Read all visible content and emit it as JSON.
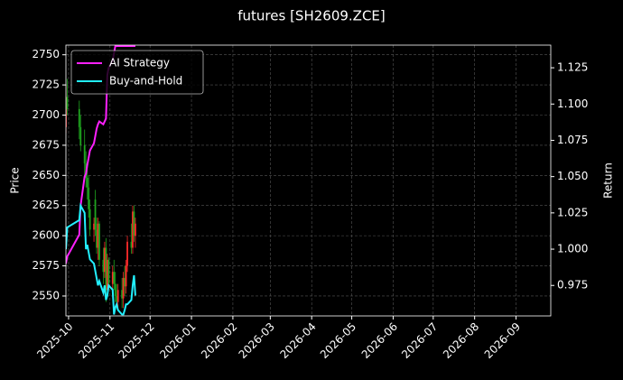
{
  "chart_data": {
    "type": "candlestick",
    "title": "futures [SH2609.ZCE]",
    "ylabel": "Price",
    "y2label": "Return",
    "x": [
      "2025-09-29",
      "2025-09-30",
      "2025-10-09",
      "2025-10-10",
      "2025-10-13",
      "2025-10-14",
      "2025-10-15",
      "2025-10-16",
      "2025-10-17",
      "2025-10-20",
      "2025-10-21",
      "2025-10-22",
      "2025-10-23",
      "2025-10-24",
      "2025-10-27",
      "2025-10-28",
      "2025-10-29",
      "2025-10-30",
      "2025-10-31",
      "2025-11-03",
      "2025-11-04",
      "2025-11-05",
      "2025-11-06",
      "2025-11-07",
      "2025-11-10",
      "2025-11-11",
      "2025-11-12",
      "2025-11-13",
      "2025-11-14",
      "2025-11-17",
      "2025-11-18",
      "2025-11-19",
      "2025-11-20"
    ],
    "open": [
      2690,
      2715,
      2705,
      2690,
      2675,
      2660,
      2648,
      2640,
      2622,
      2605,
      2630,
      2605,
      2590,
      2610,
      2580,
      2570,
      2590,
      2555,
      2580,
      2560,
      2570,
      2560,
      2550,
      2545,
      2555,
      2548,
      2565,
      2558,
      2575,
      2595,
      2590,
      2620,
      2600
    ],
    "high": [
      2725,
      2730,
      2712,
      2700,
      2688,
      2670,
      2660,
      2650,
      2630,
      2615,
      2638,
      2615,
      2615,
      2612,
      2590,
      2595,
      2598,
      2585,
      2582,
      2575,
      2580,
      2570,
      2560,
      2560,
      2565,
      2570,
      2575,
      2580,
      2600,
      2610,
      2625,
      2625,
      2615
    ],
    "low": [
      2685,
      2700,
      2680,
      2670,
      2650,
      2640,
      2630,
      2615,
      2600,
      2595,
      2600,
      2585,
      2580,
      2575,
      2560,
      2565,
      2545,
      2550,
      2555,
      2548,
      2555,
      2545,
      2540,
      2538,
      2540,
      2540,
      2550,
      2552,
      2570,
      2585,
      2585,
      2595,
      2590
    ],
    "close": [
      2715,
      2705,
      2690,
      2675,
      2660,
      2648,
      2640,
      2622,
      2605,
      2610,
      2605,
      2590,
      2610,
      2580,
      2570,
      2590,
      2555,
      2580,
      2560,
      2570,
      2560,
      2550,
      2545,
      2555,
      2548,
      2565,
      2558,
      2575,
      2595,
      2590,
      2620,
      2600,
      2610
    ],
    "up_color": "#ff2a2a",
    "down_color": "#1fa51f",
    "series": [
      {
        "name": "AI Strategy",
        "color": "#ff20ff",
        "axis": "y2",
        "values": [
          0.99,
          0.995,
          1.01,
          1.03,
          1.05,
          1.052,
          1.058,
          1.063,
          1.068,
          1.073,
          1.078,
          1.083,
          1.086,
          1.088,
          1.086,
          1.088,
          1.09,
          1.12,
          1.125,
          1.13,
          1.135,
          1.14,
          1.14,
          1.14,
          1.14,
          1.14,
          1.14,
          1.14,
          1.14,
          1.14,
          1.14,
          1.14,
          1.14
        ]
      },
      {
        "name": "Buy-and-Hold",
        "color": "#22f0ff",
        "axis": "y2",
        "values": [
          1.0,
          1.015,
          1.02,
          1.03,
          1.025,
          1.0,
          1.003,
          0.998,
          0.993,
          0.99,
          0.985,
          0.98,
          0.975,
          0.978,
          0.97,
          0.975,
          0.965,
          0.968,
          0.975,
          0.972,
          0.955,
          0.96,
          0.962,
          0.958,
          0.955,
          0.955,
          0.958,
          0.962,
          0.962,
          0.965,
          0.975,
          0.982,
          0.968
        ]
      }
    ],
    "xlim": [
      "2025-09-29",
      "2026-09-27"
    ],
    "xticks": [
      {
        "value": "2025-10-01",
        "label": "2025-10"
      },
      {
        "value": "2025-11-01",
        "label": "2025-11"
      },
      {
        "value": "2025-12-01",
        "label": "2025-12"
      },
      {
        "value": "2026-01-01",
        "label": "2026-01"
      },
      {
        "value": "2026-02-01",
        "label": "2026-02"
      },
      {
        "value": "2026-03-01",
        "label": "2026-03"
      },
      {
        "value": "2026-04-01",
        "label": "2026-04"
      },
      {
        "value": "2026-05-01",
        "label": "2026-05"
      },
      {
        "value": "2026-06-01",
        "label": "2026-06"
      },
      {
        "value": "2026-07-01",
        "label": "2026-07"
      },
      {
        "value": "2026-08-01",
        "label": "2026-08"
      },
      {
        "value": "2026-09-01",
        "label": "2026-09"
      }
    ],
    "ylim": [
      2533.5,
      2758
    ],
    "yticks": [
      2550,
      2575,
      2600,
      2625,
      2650,
      2675,
      2700,
      2725,
      2750
    ],
    "y2lim": [
      0.954,
      1.1406
    ],
    "y2ticks": [
      0.975,
      {
        "value": 1.0,
        "label": "1.000"
      },
      1.025,
      {
        "value": 1.05,
        "label": "1.050"
      },
      1.075,
      {
        "value": 1.1,
        "label": "1.100"
      },
      1.125
    ],
    "grid": true,
    "legend": "upper left"
  }
}
